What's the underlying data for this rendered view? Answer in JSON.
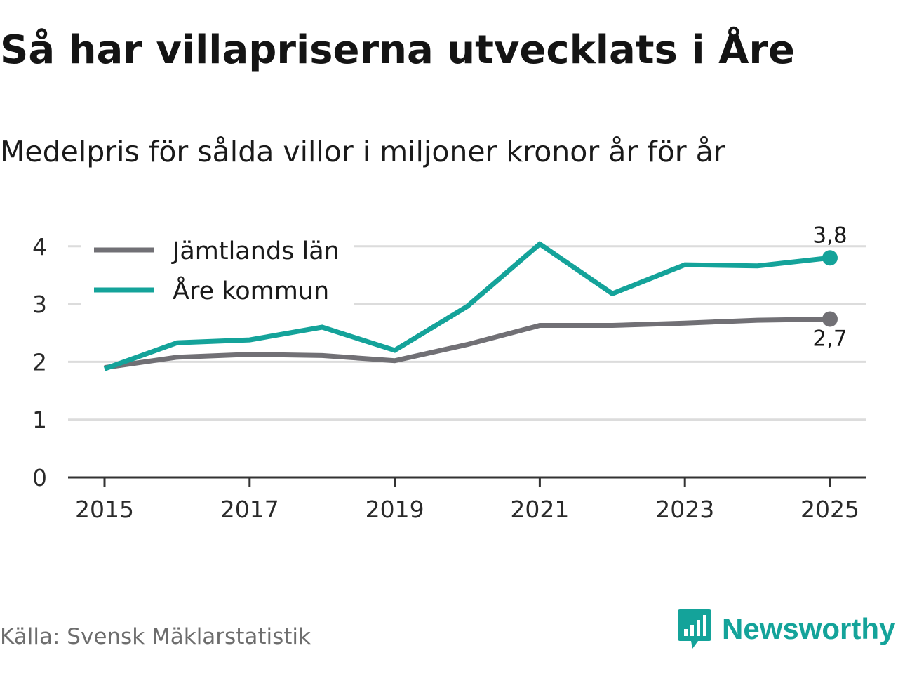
{
  "title": "Så har villapriserna utvecklats i Åre",
  "subtitle": "Medelpris för sålda villor i miljoner kronor år för år",
  "source": "Källa: Svensk Mäklarstatistik",
  "brand": {
    "name": "Newsworthy",
    "icon": "newsworthy-logo-icon",
    "color": "#14a39a"
  },
  "chart_data": {
    "type": "line",
    "title": "Så har villapriserna utvecklats i Åre",
    "subtitle": "Medelpris för sålda villor i miljoner kronor år för år",
    "xlabel": "",
    "ylabel": "",
    "x": [
      2015,
      2016,
      2017,
      2018,
      2019,
      2020,
      2021,
      2022,
      2023,
      2024,
      2025
    ],
    "x_ticks": [
      "2015",
      "2017",
      "2019",
      "2021",
      "2023",
      "2025"
    ],
    "y_ticks": [
      "0",
      "1",
      "2",
      "3",
      "4"
    ],
    "ylim": [
      0,
      4.4
    ],
    "grid": true,
    "legend_position": "top-left",
    "series": [
      {
        "name": "Jämtlands län",
        "color": "#717075",
        "values": [
          1.9,
          2.08,
          2.13,
          2.11,
          2.02,
          2.3,
          2.63,
          2.63,
          2.67,
          2.72,
          2.74
        ],
        "end_label": "2,7"
      },
      {
        "name": "Åre kommun",
        "color": "#14a39a",
        "values": [
          1.88,
          2.33,
          2.38,
          2.6,
          2.2,
          2.96,
          4.04,
          3.18,
          3.68,
          3.66,
          3.8
        ],
        "end_label": "3,8"
      }
    ]
  }
}
